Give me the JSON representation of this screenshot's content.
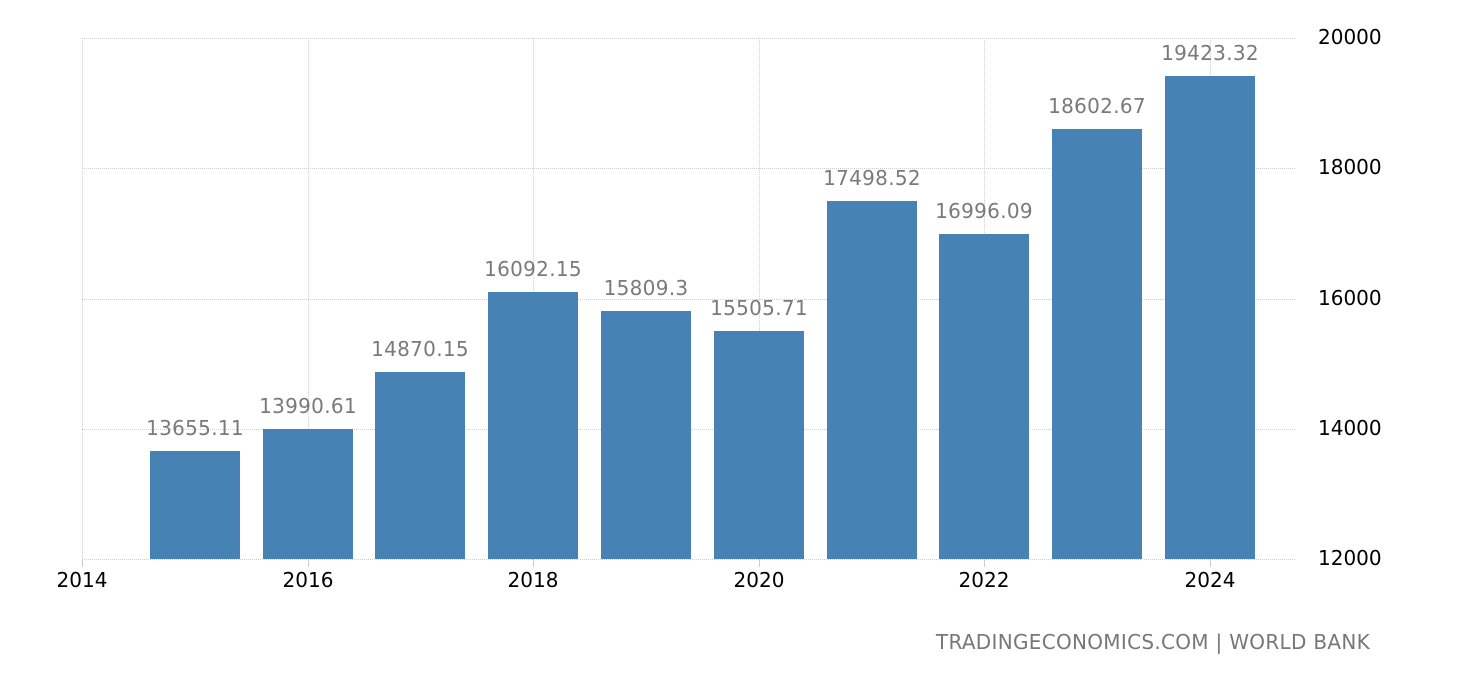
{
  "chart_data": {
    "type": "bar",
    "title": "",
    "xlabel": "",
    "ylabel": "",
    "categories": [
      "2015",
      "2016",
      "2017",
      "2018",
      "2019",
      "2020",
      "2021",
      "2022",
      "2023",
      "2024"
    ],
    "values": [
      13655.11,
      13990.61,
      14870.15,
      16092.15,
      15809.3,
      15505.71,
      17498.52,
      16996.09,
      18602.67,
      19423.32
    ],
    "value_labels": [
      "13655.11",
      "13990.61",
      "14870.15",
      "16092.15",
      "15809.3",
      "15505.71",
      "17498.52",
      "16996.09",
      "18602.67",
      "19423.32"
    ],
    "ylim": [
      12000,
      20000
    ],
    "y_ticks": [
      "12000",
      "14000",
      "16000",
      "18000",
      "20000"
    ],
    "x_ticks": [
      "2014",
      "2016",
      "2018",
      "2020",
      "2022",
      "2024"
    ],
    "y_axis_position": "right",
    "grid": true,
    "legend": null,
    "bar_color": "#4682b4"
  },
  "source_text": "TRADINGECONOMICS.COM | WORLD BANK"
}
